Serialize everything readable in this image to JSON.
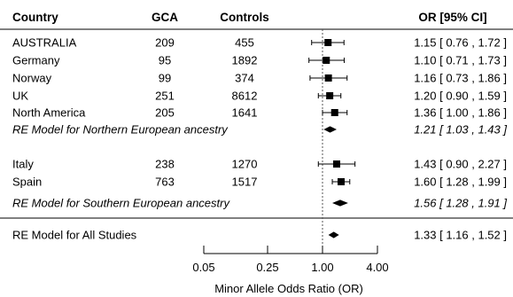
{
  "chart_data": {
    "type": "forest",
    "headers": {
      "country": "Country",
      "gca": "GCA",
      "controls": "Controls",
      "or": "OR [95% CI]"
    },
    "rows": [
      {
        "kind": "study",
        "label": "AUSTRALIA",
        "gca": "209",
        "controls": "455",
        "or": 1.15,
        "lo": 0.76,
        "hi": 1.72,
        "text": "1.15 [ 0.76 , 1.72 ]"
      },
      {
        "kind": "study",
        "label": "Germany",
        "gca": "95",
        "controls": "1892",
        "or": 1.1,
        "lo": 0.71,
        "hi": 1.73,
        "text": "1.10 [ 0.71 , 1.73 ]"
      },
      {
        "kind": "study",
        "label": "Norway",
        "gca": "99",
        "controls": "374",
        "or": 1.16,
        "lo": 0.73,
        "hi": 1.86,
        "text": "1.16 [ 0.73 , 1.86 ]"
      },
      {
        "kind": "study",
        "label": "UK",
        "gca": "251",
        "controls": "8612",
        "or": 1.2,
        "lo": 0.9,
        "hi": 1.59,
        "text": "1.20 [ 0.90 , 1.59 ]"
      },
      {
        "kind": "study",
        "label": "North America",
        "gca": "205",
        "controls": "1641",
        "or": 1.36,
        "lo": 1.0,
        "hi": 1.86,
        "text": "1.36 [ 1.00 , 1.86 ]"
      },
      {
        "kind": "subtotal",
        "label": "RE Model for Northern European ancestry",
        "or": 1.21,
        "lo": 1.03,
        "hi": 1.43,
        "text": "1.21 [ 1.03 , 1.43 ]"
      },
      {
        "kind": "study",
        "label": "Italy",
        "gca": "238",
        "controls": "1270",
        "or": 1.43,
        "lo": 0.9,
        "hi": 2.27,
        "text": "1.43 [ 0.90 , 2.27 ]"
      },
      {
        "kind": "study",
        "label": "Spain",
        "gca": "763",
        "controls": "1517",
        "or": 1.6,
        "lo": 1.28,
        "hi": 1.99,
        "text": "1.60 [ 1.28 , 1.99 ]"
      },
      {
        "kind": "subtotal",
        "label": "RE Model for Southern European ancestry",
        "or": 1.56,
        "lo": 1.28,
        "hi": 1.91,
        "text": "1.56 [ 1.28 , 1.91 ]"
      },
      {
        "kind": "overall",
        "label": "RE Model for All Studies",
        "or": 1.33,
        "lo": 1.16,
        "hi": 1.52,
        "text": "1.33 [ 1.16 , 1.52 ]"
      }
    ],
    "x_axis": {
      "label": "Minor Allele Odds Ratio (OR)",
      "scale": "log",
      "ticks": [
        0.05,
        0.25,
        1.0,
        4.0
      ],
      "tick_labels": [
        "0.05",
        "0.25",
        "1.00",
        "4.00"
      ],
      "xlim": [
        0.05,
        4.0
      ],
      "reference_line": 1.0
    },
    "colors": {
      "marks": "#000000",
      "text": "#000000",
      "reference_line": "#555555"
    }
  }
}
